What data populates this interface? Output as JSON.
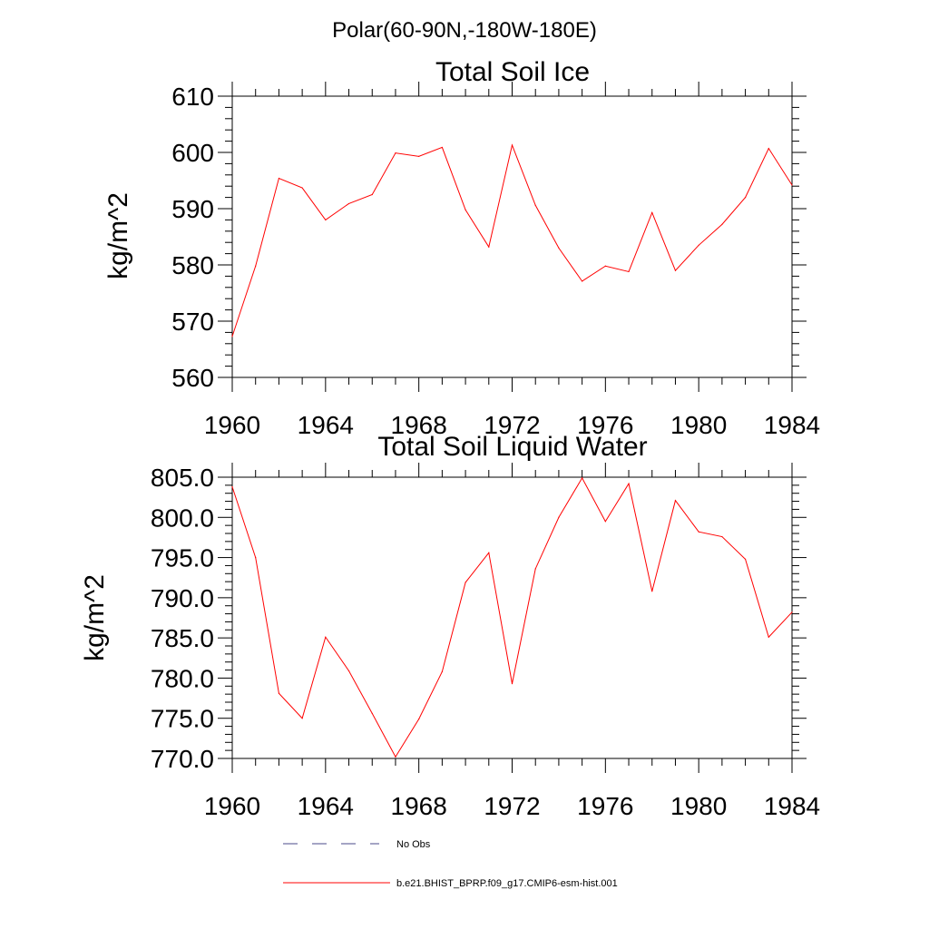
{
  "suptitle": "Polar(60-90N,-180W-180E)",
  "chart_data": [
    {
      "type": "line",
      "title": "Total Soil Ice",
      "xlabel": "",
      "ylabel": "kg/m^2",
      "xlim": [
        1960,
        1984
      ],
      "ylim": [
        560,
        610
      ],
      "x_ticks": [
        1960,
        1964,
        1968,
        1972,
        1976,
        1980,
        1984
      ],
      "x_tick_labels": [
        "1960",
        "1964",
        "1968",
        "1972",
        "1976",
        "1980",
        "1984"
      ],
      "y_ticks": [
        560,
        570,
        580,
        590,
        600,
        610
      ],
      "y_tick_labels": [
        "560",
        "570",
        "580",
        "590",
        "600",
        "610"
      ],
      "y_minor_step": 2,
      "x_minor_step": 1,
      "grid": false,
      "x": [
        1960,
        1961,
        1962,
        1963,
        1964,
        1965,
        1966,
        1967,
        1968,
        1969,
        1970,
        1971,
        1972,
        1973,
        1974,
        1975,
        1976,
        1977,
        1978,
        1979,
        1980,
        1981,
        1982,
        1983,
        1984
      ],
      "series": [
        {
          "name": "b.e21.BHIST_BPRP.f09_g17.CMIP6-esm-hist.001",
          "color": "#ff0000",
          "values": [
            567.3,
            579.8,
            595.4,
            593.7,
            588.0,
            590.9,
            592.5,
            599.9,
            599.3,
            600.9,
            589.8,
            583.2,
            601.3,
            590.6,
            583.0,
            577.1,
            579.8,
            578.8,
            589.3,
            579.0,
            583.5,
            587.2,
            592.0,
            600.7,
            594.2
          ]
        }
      ]
    },
    {
      "type": "line",
      "title": "Total Soil Liquid Water",
      "xlabel": "",
      "ylabel": "kg/m^2",
      "xlim": [
        1960,
        1984
      ],
      "ylim": [
        770,
        805
      ],
      "x_ticks": [
        1960,
        1964,
        1968,
        1972,
        1976,
        1980,
        1984
      ],
      "x_tick_labels": [
        "1960",
        "1964",
        "1968",
        "1972",
        "1976",
        "1980",
        "1984"
      ],
      "y_ticks": [
        770,
        775,
        780,
        785,
        790,
        795,
        800,
        805
      ],
      "y_tick_labels": [
        "770.0",
        "775.0",
        "780.0",
        "785.0",
        "790.0",
        "795.0",
        "800.0",
        "805.0"
      ],
      "y_minor_step": 1,
      "x_minor_step": 1,
      "grid": false,
      "x": [
        1960,
        1961,
        1962,
        1963,
        1964,
        1965,
        1966,
        1967,
        1968,
        1969,
        1970,
        1971,
        1972,
        1973,
        1974,
        1975,
        1976,
        1977,
        1978,
        1979,
        1980,
        1981,
        1982,
        1983,
        1984
      ],
      "series": [
        {
          "name": "b.e21.BHIST_BPRP.f09_g17.CMIP6-esm-hist.001",
          "color": "#ff0000",
          "values": [
            803.8,
            795.0,
            778.1,
            775.0,
            785.1,
            780.9,
            775.6,
            770.2,
            774.9,
            780.8,
            791.9,
            795.6,
            779.3,
            793.6,
            800.0,
            804.9,
            799.5,
            804.2,
            790.8,
            802.1,
            798.2,
            797.6,
            794.8,
            785.1,
            788.2
          ]
        }
      ]
    }
  ],
  "legend": {
    "placement": "bottom",
    "items": [
      {
        "label": "No Obs",
        "color": "#4a4a8a",
        "style": "dashed"
      },
      {
        "label": "b.e21.BHIST_BPRP.f09_g17.CMIP6-esm-hist.001",
        "color": "#ff0000",
        "style": "solid"
      }
    ]
  }
}
